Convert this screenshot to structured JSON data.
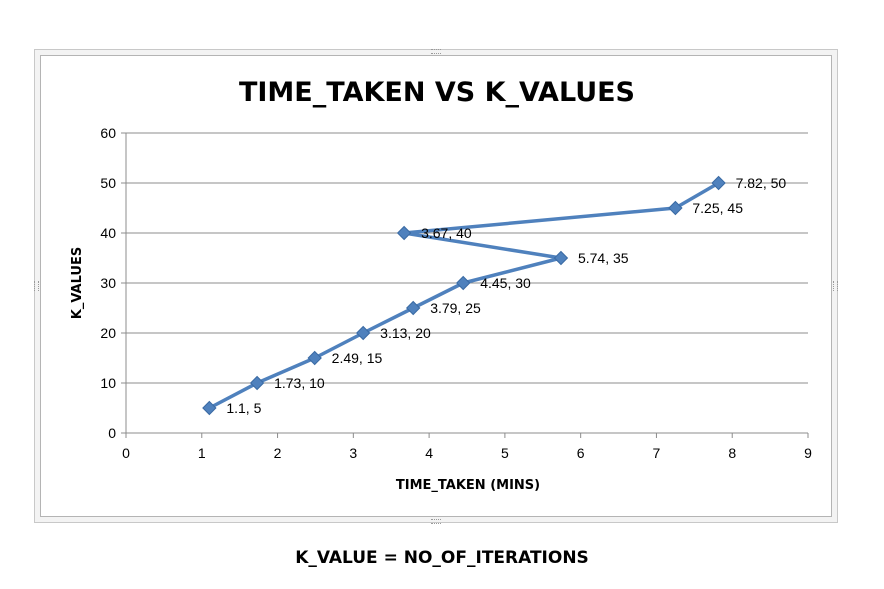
{
  "chart_data": {
    "type": "scatter",
    "mode": "lines+markers",
    "title": "TIME_TAKEN VS K_VALUES",
    "xlabel": "TIME_TAKEN (MINS)",
    "ylabel": "K_VALUES",
    "xlim": [
      0,
      9
    ],
    "ylim": [
      0,
      60
    ],
    "x_ticks": [
      0,
      1,
      2,
      3,
      4,
      5,
      6,
      7,
      8,
      9
    ],
    "y_ticks": [
      0,
      10,
      20,
      30,
      40,
      50,
      60
    ],
    "grid": "horizontal",
    "legend": "none",
    "series_color": "#4f81bd",
    "points": [
      {
        "x": 1.1,
        "y": 5,
        "label": "1.1, 5"
      },
      {
        "x": 1.73,
        "y": 10,
        "label": "1.73, 10"
      },
      {
        "x": 2.49,
        "y": 15,
        "label": "2.49, 15"
      },
      {
        "x": 3.13,
        "y": 20,
        "label": "3.13, 20"
      },
      {
        "x": 3.79,
        "y": 25,
        "label": "3.79, 25"
      },
      {
        "x": 4.45,
        "y": 30,
        "label": "4.45, 30"
      },
      {
        "x": 5.74,
        "y": 35,
        "label": "5.74, 35"
      },
      {
        "x": 3.67,
        "y": 40,
        "label": "3.67, 40"
      },
      {
        "x": 7.25,
        "y": 45,
        "label": "7.25, 45"
      },
      {
        "x": 7.82,
        "y": 50,
        "label": "7.82, 50"
      }
    ]
  },
  "caption": "K_VALUE = NO_OF_ITERATIONS"
}
